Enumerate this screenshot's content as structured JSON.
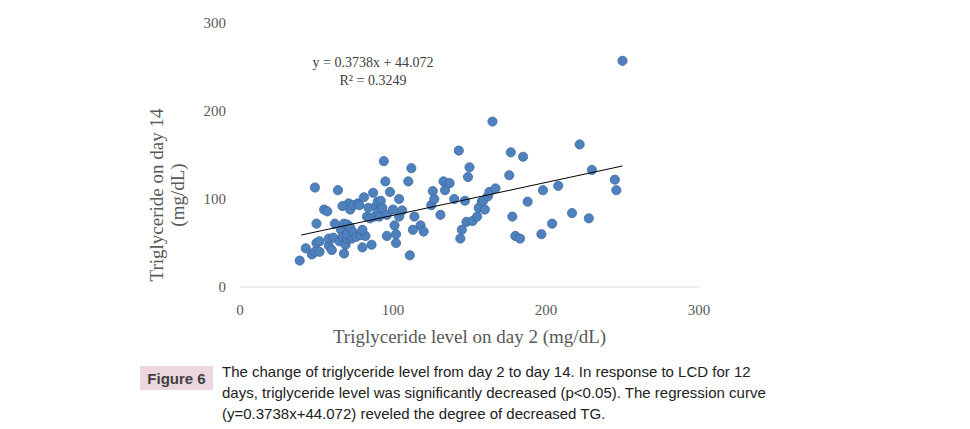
{
  "chart_data": {
    "type": "scatter",
    "xlabel": "Triglyceride level on day 2 (mg/dL)",
    "ylabel": [
      "Triglyceride on day 14",
      "(mg/dL)"
    ],
    "annotations": [
      "y = 0.3738x + 44.072",
      "R² = 0.3249"
    ],
    "figure_label": "Figure 6",
    "caption": [
      "The change of triglyceride level from day 2 to day 14. In response to LCD for 12",
      "days, triglyceride level was significantly decreased (p<0.05). The regression curve",
      "(y=0.3738x+44.072) reveled the degree of decreased TG."
    ],
    "xlim": [
      0,
      300
    ],
    "ylim": [
      0,
      300
    ],
    "xticks": [
      0,
      100,
      200,
      300
    ],
    "yticks": [
      0,
      100,
      200,
      300
    ],
    "grid": false,
    "color": "#4f81bd",
    "marker": "circle",
    "x": [
      39,
      43,
      47,
      49,
      49,
      50,
      50,
      52,
      52,
      55,
      57,
      58,
      58,
      60,
      61,
      62,
      64,
      65,
      66,
      67,
      68,
      68,
      69,
      70,
      70,
      70,
      71,
      72,
      72,
      73,
      74,
      74,
      76,
      77,
      78,
      79,
      80,
      81,
      82,
      83,
      84,
      85,
      86,
      87,
      88,
      89,
      90,
      90,
      91,
      92,
      93,
      94,
      95,
      96,
      98,
      100,
      101,
      102,
      102,
      104,
      104,
      106,
      110,
      111,
      112,
      113,
      114,
      118,
      120,
      125,
      126,
      127,
      131,
      133,
      134,
      137,
      140,
      143,
      144,
      145,
      147,
      148,
      149,
      150,
      152,
      155,
      156,
      158,
      159,
      160,
      162,
      163,
      165,
      167,
      176,
      177,
      178,
      180,
      183,
      185,
      188,
      197,
      198,
      204,
      208,
      217,
      222,
      228,
      230,
      245,
      246,
      250,
      67,
      80,
      96
    ],
    "values": [
      30,
      44,
      37,
      40,
      113,
      50,
      72,
      52,
      40,
      88,
      86,
      47,
      55,
      42,
      56,
      72,
      110,
      52,
      65,
      57,
      72,
      38,
      48,
      55,
      60,
      71,
      95,
      68,
      88,
      55,
      62,
      93,
      57,
      95,
      93,
      59,
      45,
      102,
      58,
      80,
      90,
      78,
      48,
      107,
      80,
      92,
      97,
      85,
      80,
      98,
      90,
      143,
      120,
      82,
      108,
      88,
      70,
      60,
      50,
      100,
      80,
      87,
      120,
      36,
      135,
      65,
      80,
      70,
      63,
      93,
      109,
      100,
      82,
      120,
      110,
      118,
      100,
      155,
      55,
      65,
      98,
      74,
      125,
      136,
      75,
      80,
      90,
      97,
      98,
      88,
      103,
      108,
      188,
      112,
      127,
      153,
      80,
      58,
      55,
      148,
      97,
      60,
      110,
      72,
      115,
      84,
      162,
      78,
      133,
      122,
      110,
      257,
      92,
      65,
      58
    ],
    "trendline": {
      "x": [
        40,
        250
      ],
      "values": [
        59.02,
        137.52
      ],
      "color": "#000000",
      "line_style": "solid"
    }
  }
}
